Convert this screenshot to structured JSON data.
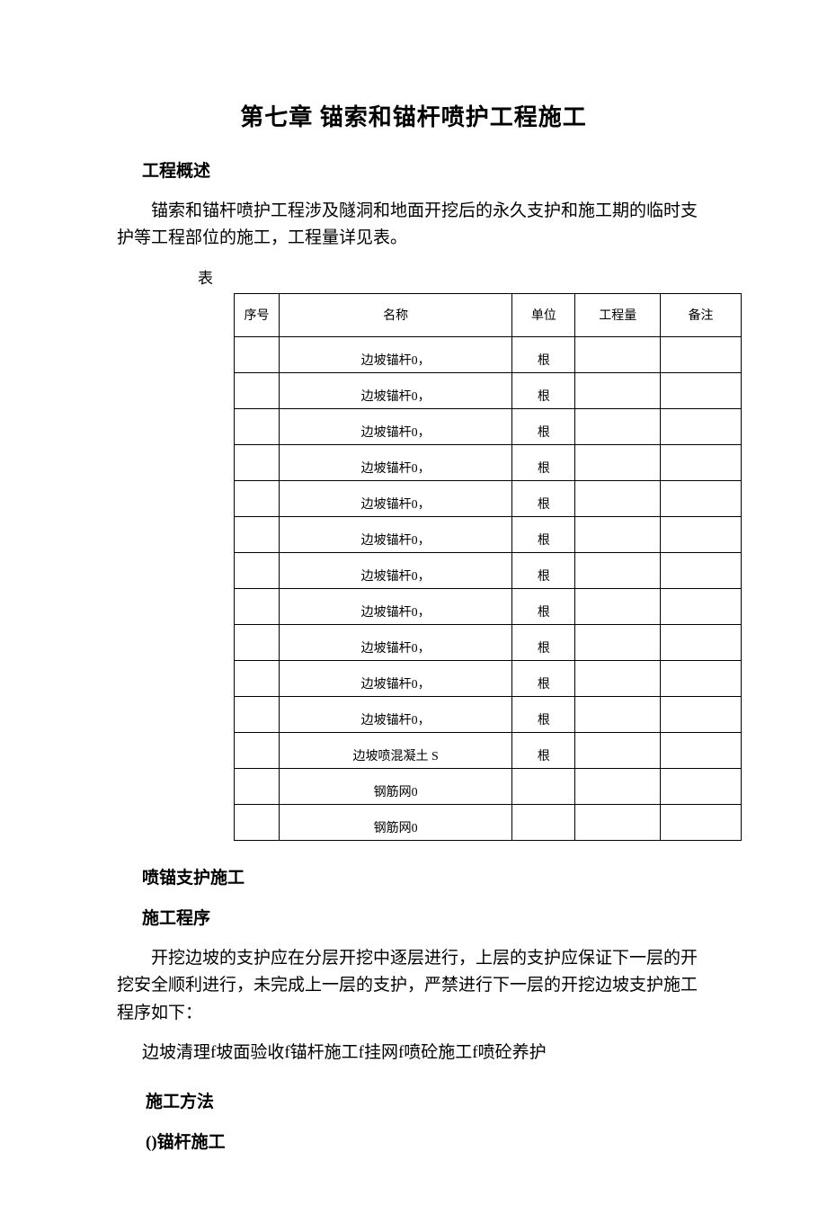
{
  "chapter_title": "第七章 锚索和锚杆喷护工程施工",
  "section1_heading": "工程概述",
  "paragraph1": "锚索和锚杆喷护工程涉及隧洞和地面开挖后的永久支护和施工期的临时支护等工程部位的施工，工程量详见表。",
  "table_caption": "表",
  "table": {
    "columns": [
      "序号",
      "名称",
      "单位",
      "工程量",
      "备注"
    ],
    "rows": [
      [
        "",
        "边坡锚杆0，",
        "根",
        "",
        ""
      ],
      [
        "",
        "边坡锚杆0，",
        "根",
        "",
        ""
      ],
      [
        "",
        "边坡锚杆0，",
        "根",
        "",
        ""
      ],
      [
        "",
        "边坡锚杆0，",
        "根",
        "",
        ""
      ],
      [
        "",
        "边坡锚杆0，",
        "根",
        "",
        ""
      ],
      [
        "",
        "边坡锚杆0，",
        "根",
        "",
        ""
      ],
      [
        "",
        "边坡锚杆0，",
        "根",
        "",
        ""
      ],
      [
        "",
        "边坡锚杆0，",
        "根",
        "",
        ""
      ],
      [
        "",
        "边坡锚杆0，",
        "根",
        "",
        ""
      ],
      [
        "",
        "边坡锚杆0，",
        "根",
        "",
        ""
      ],
      [
        "",
        "边坡锚杆0，",
        "根",
        "",
        ""
      ],
      [
        "",
        "边坡喷混凝土 S",
        "根",
        "",
        ""
      ],
      [
        "",
        "钢筋网0",
        "",
        "",
        ""
      ],
      [
        "",
        "钢筋网0",
        "",
        "",
        ""
      ]
    ]
  },
  "section2_heading": "喷锚支护施工",
  "subsection2_1_heading": "施工程序",
  "paragraph2": "开挖边坡的支护应在分层开挖中逐层进行，上层的支护应保证下一层的开挖安全顺利进行，未完成上一层的支护，严禁进行下一层的开挖边坡支护施工程序如下：",
  "process_flow": "边坡清理f坡面验收f锚杆施工f挂网f喷砼施工f喷砼养护",
  "subsection2_2_heading": "施工方法",
  "subsubsection2_2_1_heading": "()锚杆施工"
}
